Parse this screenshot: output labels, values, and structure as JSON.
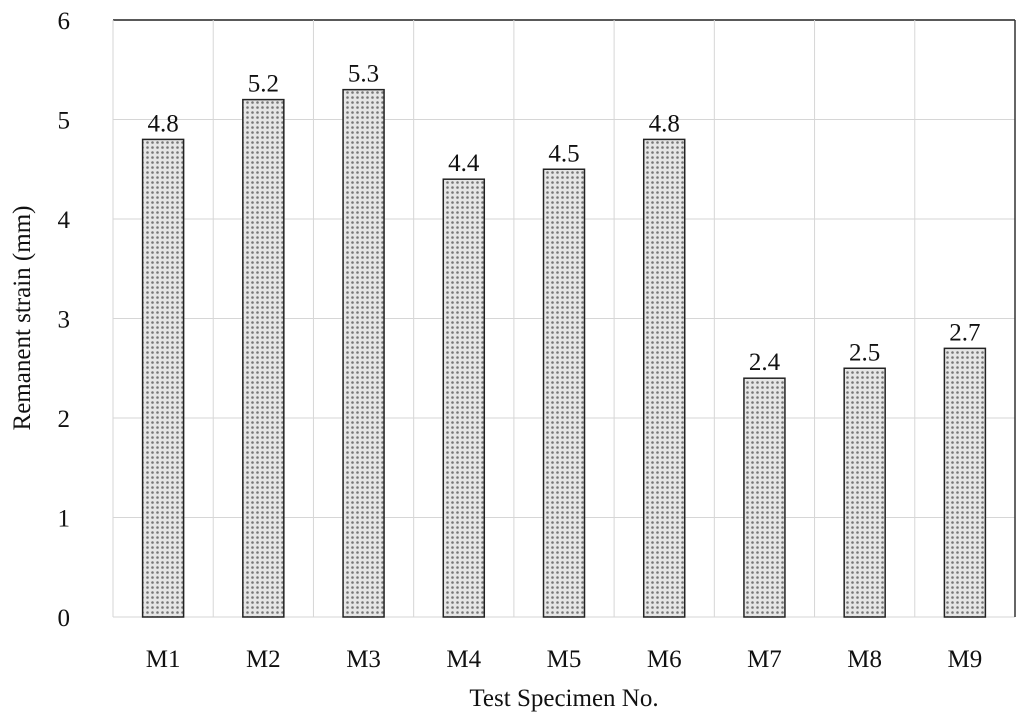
{
  "chart_data": {
    "type": "bar",
    "title": "",
    "xlabel": "Test Specimen No.",
    "ylabel": "Remanent strain (mm)",
    "categories": [
      "M1",
      "M2",
      "M3",
      "M4",
      "M5",
      "M6",
      "M7",
      "M8",
      "M9"
    ],
    "values": [
      4.8,
      5.2,
      5.3,
      4.4,
      4.5,
      4.8,
      2.4,
      2.5,
      2.7
    ],
    "data_labels": [
      "4.8",
      "5.2",
      "5.3",
      "4.4",
      "4.5",
      "4.8",
      "2.4",
      "2.5",
      "2.7"
    ],
    "ylim": [
      0,
      6
    ],
    "yticks": [
      "0",
      "1",
      "2",
      "3",
      "4",
      "5",
      "6"
    ],
    "grid": true,
    "bar_fill": "dotted gray pattern",
    "bar_color": "#d9d9d9",
    "bar_edge_color": "#222222"
  }
}
